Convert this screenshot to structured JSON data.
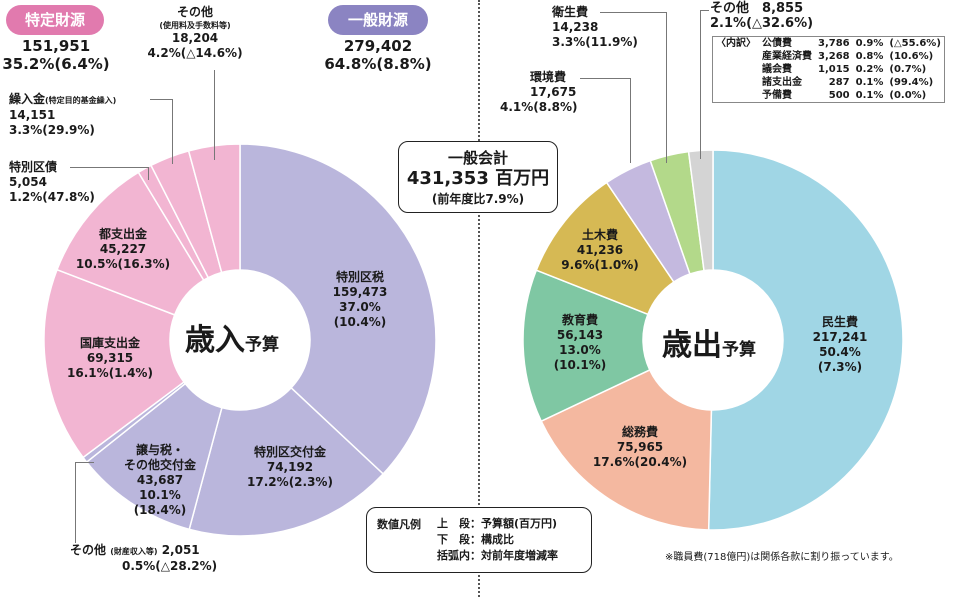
{
  "revenue": {
    "center_title": "歳入",
    "center_suffix": "予算",
    "specific": {
      "label": "特定財源",
      "value": "151,951",
      "pct": "35.2%(6.4%)",
      "color": "#e17aae"
    },
    "general": {
      "label": "一般財源",
      "value": "279,402",
      "pct": "64.8%(8.8%)",
      "color": "#8b84c2"
    },
    "items": [
      {
        "name": "特別区税",
        "value": "159,473",
        "share": "37.0%",
        "change": "(10.4%)"
      },
      {
        "name": "特別区交付金",
        "value": "74,192",
        "share": "17.2%",
        "change": "(2.3%)"
      },
      {
        "name": "譲与税・",
        "name2": "その他交付金",
        "value": "43,687",
        "share": "10.1%",
        "change": "(18.4%)"
      },
      {
        "name": "その他",
        "sub": "(財産収入等)",
        "value": "2,051",
        "share": "0.5%",
        "change": "(△28.2%)"
      },
      {
        "name": "国庫支出金",
        "value": "69,315",
        "share": "16.1%",
        "change": "(1.4%)"
      },
      {
        "name": "都支出金",
        "value": "45,227",
        "share": "10.5%",
        "change": "(16.3%)"
      },
      {
        "name": "特別区債",
        "value": "5,054",
        "share": "1.2%",
        "change": "(47.8%)"
      },
      {
        "name": "繰入金",
        "sub": "(特定目的基金繰入)",
        "value": "14,151",
        "share": "3.3%",
        "change": "(29.9%)"
      },
      {
        "name": "その他",
        "sub": "(使用料及手数料等)",
        "value": "18,204",
        "share": "4.2%",
        "change": "(△14.6%)"
      }
    ]
  },
  "expenditure": {
    "center_title": "歳出",
    "center_suffix": "予算",
    "items": [
      {
        "name": "民生費",
        "value": "217,241",
        "share": "50.4%",
        "change": "(7.3%)"
      },
      {
        "name": "総務費",
        "value": "75,965",
        "share": "17.6%",
        "change": "(20.4%)"
      },
      {
        "name": "教育費",
        "value": "56,143",
        "share": "13.0%",
        "change": "(10.1%)"
      },
      {
        "name": "土木費",
        "value": "41,236",
        "share": "9.6%",
        "change": "(1.0%)"
      },
      {
        "name": "環境費",
        "value": "17,675",
        "share": "4.1%",
        "change": "(8.8%)"
      },
      {
        "name": "衛生費",
        "value": "14,238",
        "share": "3.3%",
        "change": "(11.9%)"
      },
      {
        "name": "その他",
        "value": "8,855",
        "share": "2.1%",
        "change": "(△32.6%)"
      }
    ],
    "other_breakdown": {
      "header": "〈内訳〉",
      "rows": [
        {
          "name": "公債費",
          "value": "3,786",
          "share": "0.9%",
          "change": "(△55.6%)"
        },
        {
          "name": "産業経済費",
          "value": "3,268",
          "share": "0.8%",
          "change": "(10.6%)"
        },
        {
          "name": "議会費",
          "value": "1,015",
          "share": "0.2%",
          "change": "(0.7%)"
        },
        {
          "name": "諸支出金",
          "value": "287",
          "share": "0.1%",
          "change": "(99.4%)"
        },
        {
          "name": "予備費",
          "value": "500",
          "share": "0.1%",
          "change": "(0.0%)"
        }
      ]
    }
  },
  "total": {
    "title": "一般会計",
    "amount": "431,353 百万円",
    "ratio": "(前年度比7.9%)"
  },
  "legend": {
    "title": "数値凡例",
    "rows": [
      {
        "key": "上　段",
        "sep": "：",
        "desc": "予算額(百万円)"
      },
      {
        "key": "下　段",
        "sep": "：",
        "desc": "構成比"
      },
      {
        "key": "括弧内",
        "sep": "：",
        "desc": "対前年度増減率"
      }
    ]
  },
  "footnote": "※職員費(718億円)は関係各款に割り振っています。",
  "chart_data": [
    {
      "type": "pie",
      "title": "歳入予算",
      "unit": "百万円",
      "categories": [
        "特別区税",
        "特別区交付金",
        "譲与税・その他交付金",
        "その他(財産収入等)",
        "国庫支出金",
        "都支出金",
        "特別区債",
        "繰入金(特定目的基金繰入)",
        "その他(使用料及手数料等)"
      ],
      "values": [
        159473,
        74192,
        43687,
        2051,
        69315,
        45227,
        5054,
        14151,
        18204
      ],
      "shares": [
        37.0,
        17.2,
        10.1,
        0.5,
        16.1,
        10.5,
        1.2,
        3.3,
        4.2
      ],
      "yoy_change": [
        10.4,
        2.3,
        18.4,
        -28.2,
        1.4,
        16.3,
        47.8,
        29.9,
        -14.6
      ],
      "colors": [
        "#bab6dc",
        "#bab6dc",
        "#bab6dc",
        "#bab6dc",
        "#f2b5d2",
        "#f2b5d2",
        "#f2b5d2",
        "#f2b5d2",
        "#f2b5d2"
      ],
      "groups": [
        {
          "name": "一般財源",
          "value": 279402,
          "share": 64.8,
          "yoy_change": 8.8
        },
        {
          "name": "特定財源",
          "value": 151951,
          "share": 35.2,
          "yoy_change": 6.4
        }
      ],
      "total": 431353
    },
    {
      "type": "pie",
      "title": "歳出予算",
      "unit": "百万円",
      "categories": [
        "民生費",
        "総務費",
        "教育費",
        "土木費",
        "環境費",
        "衛生費",
        "その他"
      ],
      "values": [
        217241,
        75965,
        56143,
        41236,
        17675,
        14238,
        8855
      ],
      "shares": [
        50.4,
        17.6,
        13.0,
        9.6,
        4.1,
        3.3,
        2.1
      ],
      "yoy_change": [
        7.3,
        20.4,
        10.1,
        1.0,
        8.8,
        11.9,
        -32.6
      ],
      "colors": [
        "#a0d6e5",
        "#f4b8a0",
        "#7fc7a3",
        "#d6b954",
        "#c4b9df",
        "#b3d98a",
        "#d4d4d4"
      ],
      "total": 431353
    }
  ]
}
